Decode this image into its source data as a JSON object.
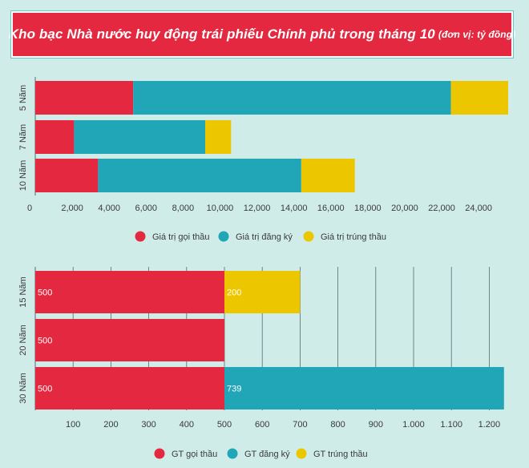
{
  "title": "Kho bạc Nhà nước huy động trái phiếu Chính phủ trong tháng 10",
  "title_unit": "(đơn vị: tỷ đồng)",
  "colors": {
    "red": "#e3283f",
    "teal": "#21a6b7",
    "yellow": "#ecc700"
  },
  "chart_data": [
    {
      "type": "bar",
      "orientation": "horizontal",
      "stacked": true,
      "categories": [
        "5 Năm",
        "7 Năm",
        "10 Năm"
      ],
      "series": [
        {
          "name": "Giá trị gọi thầu",
          "values": [
            5300,
            2100,
            3400
          ]
        },
        {
          "name": "Giá trị đăng ký",
          "values": [
            17200,
            7100,
            11000
          ]
        },
        {
          "name": "Giá trị trúng thầu",
          "values": [
            3100,
            1400,
            2900
          ]
        }
      ],
      "xticks": [
        "0",
        "2,000",
        "4,000",
        "6,000",
        "8,000",
        "10,000",
        "12,000",
        "14,000",
        "16,000",
        "18,000",
        "20,000",
        "22,000",
        "24,000"
      ],
      "xlim": [
        0,
        25600
      ],
      "grid": false,
      "legend": "bottom"
    },
    {
      "type": "bar",
      "orientation": "horizontal",
      "stacked": true,
      "categories": [
        "15 Năm",
        "20 Năm",
        "30 Năm"
      ],
      "series": [
        {
          "name": "GT gọi thầu",
          "values": [
            500,
            500,
            500
          ],
          "labels": [
            "500",
            "500",
            "500"
          ]
        },
        {
          "name": "GT đăng ký",
          "values": [
            0,
            0,
            739
          ],
          "labels": [
            "",
            "",
            "739"
          ]
        },
        {
          "name": "GT trúng thầu",
          "values": [
            200,
            0,
            0
          ],
          "labels": [
            "200",
            "",
            ""
          ]
        }
      ],
      "xticks": [
        "100",
        "200",
        "300",
        "400",
        "500",
        "600",
        "700",
        "800",
        "900",
        "1.000",
        "1.100",
        "1.200"
      ],
      "xlim": [
        0,
        1250
      ],
      "grid": true,
      "legend": "bottom"
    }
  ]
}
